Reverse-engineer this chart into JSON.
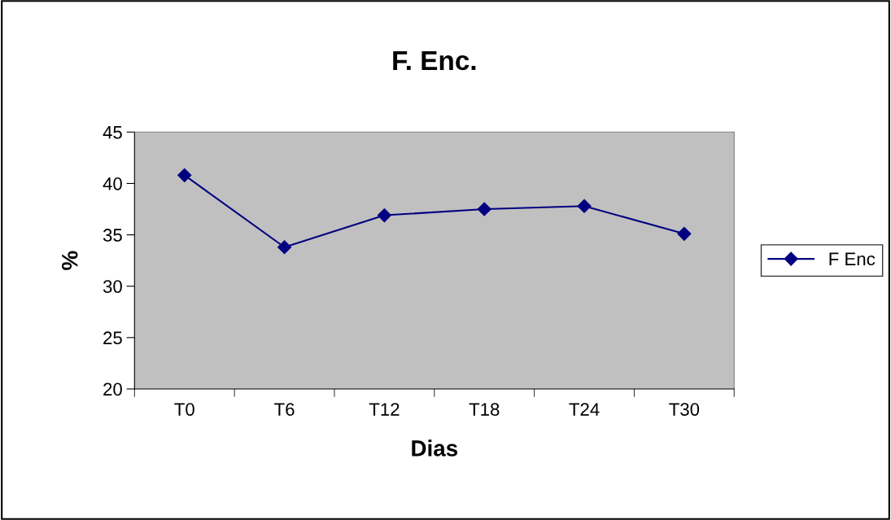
{
  "chart_data": {
    "type": "line",
    "title": "F. Enc.",
    "xlabel": "Dias",
    "ylabel": "%",
    "categories": [
      "T0",
      "T6",
      "T12",
      "T18",
      "T24",
      "T30"
    ],
    "series": [
      {
        "name": "F Enc",
        "color": "#000080",
        "values": [
          40.8,
          33.8,
          36.9,
          37.5,
          37.8,
          35.1
        ]
      }
    ],
    "ylim": [
      20,
      45
    ],
    "yticks": [
      20,
      25,
      30,
      35,
      40,
      45
    ],
    "grid": false,
    "legend": "right",
    "marker": "diamond",
    "line_style": "solid"
  }
}
